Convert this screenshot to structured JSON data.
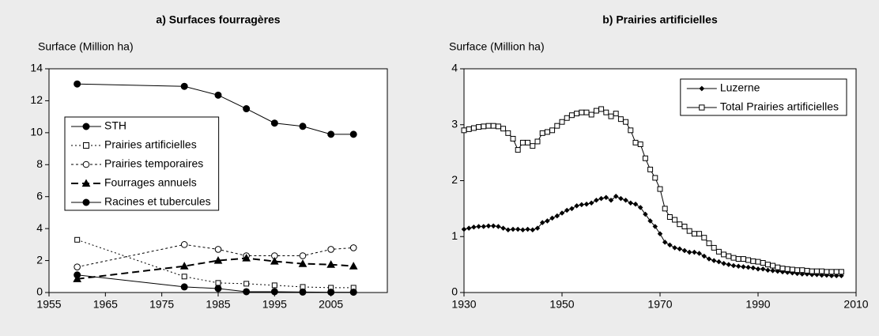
{
  "chart_data": [
    {
      "type": "line",
      "title": "a) Surfaces fourragères",
      "y_label": "Surface (Million ha)",
      "x": [
        1960,
        1979,
        1985,
        1990,
        1995,
        2000,
        2005,
        2009
      ],
      "xlim": [
        1955,
        2015
      ],
      "xticks": [
        1955,
        1965,
        1975,
        1985,
        1995,
        2005
      ],
      "ylim": [
        0,
        14
      ],
      "yticks": [
        0,
        2,
        4,
        6,
        8,
        10,
        12,
        14
      ],
      "legend": "center-left",
      "series": [
        {
          "name": "STH",
          "color": "#000000",
          "marker": "circle-filled",
          "line": "solid",
          "values": [
            13.05,
            12.9,
            12.35,
            11.5,
            10.6,
            10.4,
            9.9,
            9.9
          ]
        },
        {
          "name": "Prairies artificielles",
          "color": "#000000",
          "marker": "square-open",
          "line": "dotted",
          "values": [
            3.3,
            1.0,
            0.6,
            0.55,
            0.45,
            0.35,
            0.3,
            0.3
          ]
        },
        {
          "name": "Prairies temporaires",
          "color": "#000000",
          "marker": "circle-open",
          "line": "dash-dot",
          "values": [
            1.6,
            3.0,
            2.7,
            2.3,
            2.3,
            2.3,
            2.7,
            2.8
          ]
        },
        {
          "name": "Fourrages annuels",
          "color": "#000000",
          "marker": "triangle-filled",
          "line": "long-dash",
          "values": [
            0.85,
            1.65,
            2.0,
            2.15,
            1.95,
            1.8,
            1.75,
            1.65
          ]
        },
        {
          "name": "Racines et tubercules",
          "color": "#000000",
          "marker": "circle-filled",
          "line": "solid",
          "values": [
            1.1,
            0.35,
            0.25,
            0.05,
            0.05,
            0.03,
            0.02,
            0.02
          ]
        }
      ]
    },
    {
      "type": "line",
      "title": "b) Prairies artificielles",
      "y_label": "Surface (Million ha)",
      "x": [
        1930,
        1931,
        1932,
        1933,
        1934,
        1935,
        1936,
        1937,
        1938,
        1939,
        1940,
        1941,
        1942,
        1943,
        1944,
        1945,
        1946,
        1947,
        1948,
        1949,
        1950,
        1951,
        1952,
        1953,
        1954,
        1955,
        1956,
        1957,
        1958,
        1959,
        1960,
        1961,
        1962,
        1963,
        1964,
        1965,
        1966,
        1967,
        1968,
        1969,
        1970,
        1971,
        1972,
        1973,
        1974,
        1975,
        1976,
        1977,
        1978,
        1979,
        1980,
        1981,
        1982,
        1983,
        1984,
        1985,
        1986,
        1987,
        1988,
        1989,
        1990,
        1991,
        1992,
        1993,
        1994,
        1995,
        1996,
        1997,
        1998,
        1999,
        2000,
        2001,
        2002,
        2003,
        2004,
        2005,
        2006,
        2007
      ],
      "xlim": [
        1930,
        2010
      ],
      "xticks": [
        1930,
        1950,
        1970,
        1990,
        2010
      ],
      "ylim": [
        0,
        4
      ],
      "yticks": [
        0,
        1,
        2,
        3,
        4
      ],
      "legend": "upper-right",
      "series": [
        {
          "name": "Luzerne",
          "color": "#000000",
          "marker": "diamond-filled",
          "line": "solid",
          "values": [
            1.13,
            1.15,
            1.17,
            1.18,
            1.18,
            1.19,
            1.19,
            1.18,
            1.15,
            1.12,
            1.13,
            1.13,
            1.12,
            1.13,
            1.12,
            1.15,
            1.25,
            1.28,
            1.33,
            1.37,
            1.42,
            1.47,
            1.5,
            1.55,
            1.57,
            1.58,
            1.6,
            1.65,
            1.68,
            1.7,
            1.65,
            1.72,
            1.68,
            1.65,
            1.6,
            1.58,
            1.52,
            1.4,
            1.28,
            1.18,
            1.05,
            0.9,
            0.85,
            0.8,
            0.78,
            0.75,
            0.72,
            0.72,
            0.7,
            0.65,
            0.6,
            0.57,
            0.55,
            0.52,
            0.5,
            0.48,
            0.47,
            0.46,
            0.45,
            0.44,
            0.42,
            0.42,
            0.4,
            0.39,
            0.38,
            0.37,
            0.36,
            0.35,
            0.34,
            0.33,
            0.33,
            0.32,
            0.32,
            0.31,
            0.31,
            0.3,
            0.3,
            0.3
          ]
        },
        {
          "name": "Total Prairies artificielles",
          "color": "#000000",
          "marker": "square-open",
          "line": "solid",
          "values": [
            2.9,
            2.92,
            2.94,
            2.96,
            2.97,
            2.98,
            2.98,
            2.97,
            2.93,
            2.85,
            2.75,
            2.55,
            2.68,
            2.68,
            2.62,
            2.7,
            2.85,
            2.87,
            2.9,
            2.98,
            3.05,
            3.12,
            3.17,
            3.2,
            3.22,
            3.22,
            3.18,
            3.25,
            3.28,
            3.22,
            3.15,
            3.2,
            3.1,
            3.05,
            2.9,
            2.68,
            2.65,
            2.4,
            2.2,
            2.05,
            1.85,
            1.5,
            1.35,
            1.3,
            1.22,
            1.18,
            1.1,
            1.05,
            1.05,
            0.98,
            0.88,
            0.8,
            0.73,
            0.68,
            0.65,
            0.62,
            0.6,
            0.6,
            0.58,
            0.56,
            0.55,
            0.53,
            0.5,
            0.48,
            0.45,
            0.43,
            0.42,
            0.41,
            0.4,
            0.4,
            0.39,
            0.38,
            0.38,
            0.38,
            0.37,
            0.37,
            0.37,
            0.37
          ]
        }
      ]
    }
  ]
}
